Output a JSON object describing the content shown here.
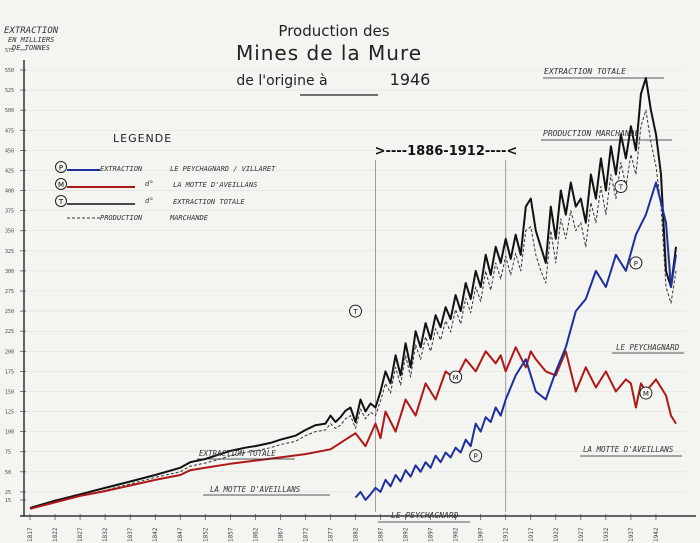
{
  "chart_data": {
    "type": "line",
    "title": [
      "Production des",
      "Mines de la Mure",
      "de l'origine   à",
      "1946"
    ],
    "ylabel": [
      "EXTRACTION",
      "EN MILLIERS",
      "DE TONNES"
    ],
    "ylim": [
      0,
      550
    ],
    "xlim": [
      1817,
      1948
    ],
    "yticks": [
      "15",
      "25",
      "50",
      "75",
      "100",
      "125",
      "150",
      "175",
      "200",
      "225",
      "250",
      "275",
      "300",
      "325",
      "350",
      "375",
      "400",
      "425",
      "450",
      "475",
      "500",
      "525",
      "550",
      "575"
    ],
    "xticks": [
      "1817",
      "1822",
      "1827",
      "1832",
      "1837",
      "1842",
      "1847",
      "1852",
      "1857",
      "1862",
      "1867",
      "1872",
      "1877",
      "1882",
      "1887",
      "1892",
      "1897",
      "1902",
      "1907",
      "1912",
      "1917",
      "1922",
      "1927",
      "1932",
      "1937",
      "1942"
    ],
    "period_label": ">----1886-1912----<",
    "period": [
      1886,
      1912
    ],
    "legend": {
      "title": "LEGENDE",
      "items": [
        {
          "symbol": "P",
          "text1": "EXTRACTION",
          "text2": "LE PEYCHAGNARD / VILLARET",
          "color": "#1c2fa0",
          "dash": false
        },
        {
          "symbol": "M",
          "text1": "d°",
          "text2": "LA MOTTE D'AVEILLANS",
          "color": "#b01818",
          "dash": false
        },
        {
          "symbol": "T",
          "text1": "d°",
          "text2": "EXTRACTION TOTALE",
          "color": "#111111",
          "dash": false
        },
        {
          "symbol": "",
          "text1": "PRODUCTION",
          "text2": "MARCHANDE",
          "color": "#333333",
          "dash": true
        }
      ]
    },
    "annotations": {
      "extraction_totale_top": "EXTRACTION TOTALE",
      "production_marchande_top": "PRODUCTION MARCHANDE",
      "le_peychagnard_right": "LE PEYCHAGNARD",
      "la_motte_right": "LA MOTTE D'AVEILLANS",
      "extraction_totale_low": "EXTRACTION TOTALE",
      "la_motte_low": "LA MOTTE D'AVEILLANS",
      "le_peychagnard_low": "LE PEYCHAGNARD"
    },
    "markers": {
      "T": "T",
      "M": "M",
      "P": "P"
    },
    "series": [
      {
        "name": "EXTRACTION TOTALE",
        "color": "#111111",
        "x": [
          1817,
          1822,
          1827,
          1832,
          1837,
          1842,
          1847,
          1849,
          1852,
          1855,
          1857,
          1860,
          1862,
          1865,
          1867,
          1870,
          1872,
          1874,
          1876,
          1877,
          1878,
          1879,
          1880,
          1881,
          1882,
          1883,
          1884,
          1885,
          1886,
          1887,
          1888,
          1889,
          1890,
          1891,
          1892,
          1893,
          1894,
          1895,
          1896,
          1897,
          1898,
          1899,
          1900,
          1901,
          1902,
          1903,
          1904,
          1905,
          1906,
          1907,
          1908,
          1909,
          1910,
          1911,
          1912,
          1913,
          1914,
          1915,
          1916,
          1917,
          1918,
          1919,
          1920,
          1921,
          1922,
          1923,
          1924,
          1925,
          1926,
          1927,
          1928,
          1929,
          1930,
          1931,
          1932,
          1933,
          1934,
          1935,
          1936,
          1937,
          1938,
          1939,
          1940,
          1941,
          1942,
          1943,
          1944,
          1945,
          1946
        ],
        "y": [
          5,
          14,
          22,
          30,
          38,
          46,
          55,
          62,
          66,
          72,
          76,
          80,
          82,
          86,
          90,
          95,
          102,
          108,
          110,
          120,
          112,
          118,
          126,
          130,
          112,
          140,
          125,
          135,
          130,
          150,
          175,
          160,
          195,
          170,
          210,
          180,
          225,
          205,
          235,
          215,
          245,
          230,
          255,
          240,
          270,
          250,
          285,
          265,
          300,
          280,
          320,
          295,
          330,
          310,
          340,
          315,
          345,
          320,
          380,
          390,
          350,
          330,
          310,
          380,
          340,
          400,
          370,
          410,
          380,
          390,
          360,
          420,
          390,
          440,
          400,
          455,
          420,
          470,
          440,
          480,
          450,
          520,
          540,
          500,
          470,
          420,
          300,
          280,
          330
        ]
      },
      {
        "name": "PRODUCTION MARCHANDE",
        "color": "#333333",
        "dash": true,
        "x": [
          1817,
          1822,
          1827,
          1832,
          1837,
          1842,
          1847,
          1849,
          1852,
          1855,
          1857,
          1860,
          1862,
          1865,
          1867,
          1870,
          1872,
          1874,
          1876,
          1877,
          1878,
          1879,
          1880,
          1881,
          1882,
          1883,
          1884,
          1885,
          1886,
          1887,
          1888,
          1889,
          1890,
          1891,
          1892,
          1893,
          1894,
          1895,
          1896,
          1897,
          1898,
          1899,
          1900,
          1901,
          1902,
          1903,
          1904,
          1905,
          1906,
          1907,
          1908,
          1909,
          1910,
          1911,
          1912,
          1913,
          1914,
          1915,
          1916,
          1917,
          1918,
          1919,
          1920,
          1921,
          1922,
          1923,
          1924,
          1925,
          1926,
          1927,
          1928,
          1929,
          1930,
          1931,
          1932,
          1933,
          1934,
          1935,
          1936,
          1937,
          1938,
          1939,
          1940,
          1941,
          1942,
          1943,
          1944,
          1945,
          1946
        ],
        "y": [
          4,
          12,
          20,
          27,
          35,
          43,
          50,
          57,
          61,
          66,
          70,
          74,
          76,
          80,
          84,
          88,
          95,
          100,
          102,
          110,
          104,
          108,
          116,
          120,
          104,
          128,
          116,
          124,
          120,
          138,
          160,
          148,
          180,
          158,
          195,
          168,
          208,
          190,
          218,
          200,
          228,
          214,
          238,
          224,
          252,
          234,
          266,
          248,
          280,
          262,
          300,
          276,
          310,
          290,
          318,
          295,
          322,
          300,
          350,
          355,
          320,
          300,
          285,
          350,
          310,
          365,
          340,
          375,
          350,
          360,
          330,
          385,
          360,
          405,
          370,
          420,
          390,
          435,
          405,
          445,
          420,
          480,
          500,
          460,
          430,
          380,
          280,
          260,
          300
        ]
      },
      {
        "name": "LA MOTTE D'AVEILLANS",
        "color": "#b01818",
        "x": [
          1817,
          1822,
          1827,
          1832,
          1837,
          1842,
          1847,
          1849,
          1852,
          1857,
          1862,
          1867,
          1872,
          1877,
          1882,
          1884,
          1886,
          1887,
          1888,
          1890,
          1892,
          1894,
          1896,
          1898,
          1900,
          1902,
          1904,
          1906,
          1908,
          1910,
          1911,
          1912,
          1914,
          1916,
          1917,
          1918,
          1920,
          1922,
          1924,
          1926,
          1928,
          1930,
          1932,
          1934,
          1936,
          1937,
          1938,
          1939,
          1940,
          1942,
          1944,
          1945,
          1946
        ],
        "y": [
          4,
          12,
          20,
          26,
          33,
          40,
          46,
          52,
          55,
          60,
          64,
          68,
          72,
          78,
          98,
          82,
          110,
          92,
          125,
          100,
          140,
          120,
          160,
          140,
          175,
          165,
          190,
          175,
          200,
          185,
          195,
          175,
          205,
          180,
          200,
          190,
          175,
          170,
          200,
          150,
          180,
          155,
          175,
          150,
          165,
          160,
          130,
          160,
          150,
          165,
          145,
          120,
          110
        ]
      },
      {
        "name": "LE PEYCHAGNARD / VILLARET",
        "color": "#1c2fa0",
        "x": [
          1882,
          1883,
          1884,
          1885,
          1886,
          1887,
          1888,
          1889,
          1890,
          1891,
          1892,
          1893,
          1894,
          1895,
          1896,
          1897,
          1898,
          1899,
          1900,
          1901,
          1902,
          1903,
          1904,
          1905,
          1906,
          1907,
          1908,
          1909,
          1910,
          1911,
          1912,
          1914,
          1916,
          1918,
          1920,
          1922,
          1924,
          1926,
          1928,
          1930,
          1932,
          1934,
          1936,
          1938,
          1940,
          1942,
          1944,
          1945,
          1946
        ],
        "y": [
          18,
          25,
          15,
          22,
          30,
          25,
          40,
          32,
          46,
          38,
          52,
          44,
          58,
          50,
          62,
          55,
          70,
          62,
          74,
          68,
          80,
          74,
          90,
          82,
          110,
          100,
          118,
          112,
          130,
          120,
          140,
          170,
          190,
          150,
          140,
          175,
          205,
          250,
          265,
          300,
          280,
          320,
          300,
          345,
          370,
          410,
          360,
          280,
          320
        ]
      }
    ]
  }
}
